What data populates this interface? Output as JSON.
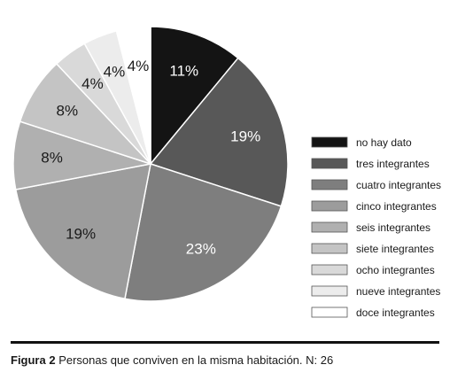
{
  "chart_data": {
    "type": "pie",
    "categories": [
      "no hay dato",
      "tres integrantes",
      "cuatro integrantes",
      "cinco integrantes",
      "seis integrantes",
      "siete integrantes",
      "ocho integrantes",
      "nueve integrantes",
      "doce integrantes"
    ],
    "values": [
      11,
      19,
      23,
      19,
      8,
      8,
      4,
      4,
      4
    ],
    "value_labels": [
      "11%",
      "19%",
      "23%",
      "19%",
      "8%",
      "8%",
      "4%",
      "4%",
      "4%"
    ],
    "colors": [
      "#141414",
      "#585858",
      "#7e7e7e",
      "#9c9c9c",
      "#b0b0b0",
      "#c4c4c4",
      "#d9d9d9",
      "#ececec",
      "#ffffff"
    ],
    "legend_position": "right"
  },
  "caption": {
    "label": "Figura 2",
    "text": " Personas que conviven en la misma habitación. N: 26"
  }
}
